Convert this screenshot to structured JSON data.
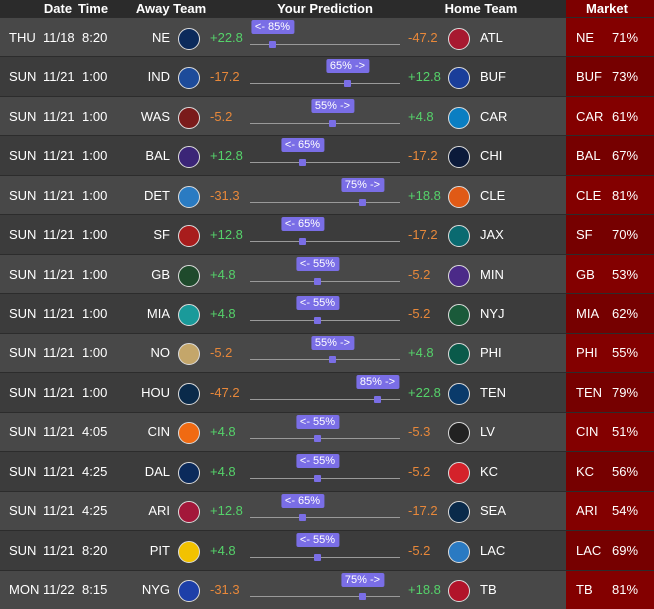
{
  "header": {
    "date": "Date",
    "time": "Time",
    "away": "Away Team",
    "prediction": "Your Prediction",
    "home": "Home Team",
    "market": "Market"
  },
  "rows": [
    {
      "day": "THU",
      "date": "11/18",
      "time": "8:20",
      "away": "NE",
      "away_spread": "+22.8",
      "prediction": "<- 85%",
      "home_spread": "-47.2",
      "home": "ATL",
      "market_team": "NE",
      "market_pct": "71%"
    },
    {
      "day": "SUN",
      "date": "11/21",
      "time": "1:00",
      "away": "IND",
      "away_spread": "-17.2",
      "prediction": "65% ->",
      "home_spread": "+12.8",
      "home": "BUF",
      "market_team": "BUF",
      "market_pct": "73%"
    },
    {
      "day": "SUN",
      "date": "11/21",
      "time": "1:00",
      "away": "WAS",
      "away_spread": "-5.2",
      "prediction": "55% ->",
      "home_spread": "+4.8",
      "home": "CAR",
      "market_team": "CAR",
      "market_pct": "61%"
    },
    {
      "day": "SUN",
      "date": "11/21",
      "time": "1:00",
      "away": "BAL",
      "away_spread": "+12.8",
      "prediction": "<- 65%",
      "home_spread": "-17.2",
      "home": "CHI",
      "market_team": "BAL",
      "market_pct": "67%"
    },
    {
      "day": "SUN",
      "date": "11/21",
      "time": "1:00",
      "away": "DET",
      "away_spread": "-31.3",
      "prediction": "75% ->",
      "home_spread": "+18.8",
      "home": "CLE",
      "market_team": "CLE",
      "market_pct": "81%"
    },
    {
      "day": "SUN",
      "date": "11/21",
      "time": "1:00",
      "away": "SF",
      "away_spread": "+12.8",
      "prediction": "<- 65%",
      "home_spread": "-17.2",
      "home": "JAX",
      "market_team": "SF",
      "market_pct": "70%"
    },
    {
      "day": "SUN",
      "date": "11/21",
      "time": "1:00",
      "away": "GB",
      "away_spread": "+4.8",
      "prediction": "<- 55%",
      "home_spread": "-5.2",
      "home": "MIN",
      "market_team": "GB",
      "market_pct": "53%"
    },
    {
      "day": "SUN",
      "date": "11/21",
      "time": "1:00",
      "away": "MIA",
      "away_spread": "+4.8",
      "prediction": "<- 55%",
      "home_spread": "-5.2",
      "home": "NYJ",
      "market_team": "MIA",
      "market_pct": "62%"
    },
    {
      "day": "SUN",
      "date": "11/21",
      "time": "1:00",
      "away": "NO",
      "away_spread": "-5.2",
      "prediction": "55% ->",
      "home_spread": "+4.8",
      "home": "PHI",
      "market_team": "PHI",
      "market_pct": "55%"
    },
    {
      "day": "SUN",
      "date": "11/21",
      "time": "1:00",
      "away": "HOU",
      "away_spread": "-47.2",
      "prediction": "85% ->",
      "home_spread": "+22.8",
      "home": "TEN",
      "market_team": "TEN",
      "market_pct": "79%"
    },
    {
      "day": "SUN",
      "date": "11/21",
      "time": "4:05",
      "away": "CIN",
      "away_spread": "+4.8",
      "prediction": "<- 55%",
      "home_spread": "-5.3",
      "home": "LV",
      "market_team": "CIN",
      "market_pct": "51%"
    },
    {
      "day": "SUN",
      "date": "11/21",
      "time": "4:25",
      "away": "DAL",
      "away_spread": "+4.8",
      "prediction": "<- 55%",
      "home_spread": "-5.2",
      "home": "KC",
      "market_team": "KC",
      "market_pct": "56%"
    },
    {
      "day": "SUN",
      "date": "11/21",
      "time": "4:25",
      "away": "ARI",
      "away_spread": "+12.8",
      "prediction": "<- 65%",
      "home_spread": "-17.2",
      "home": "SEA",
      "market_team": "ARI",
      "market_pct": "54%"
    },
    {
      "day": "SUN",
      "date": "11/21",
      "time": "8:20",
      "away": "PIT",
      "away_spread": "+4.8",
      "prediction": "<- 55%",
      "home_spread": "-5.2",
      "home": "LAC",
      "market_team": "LAC",
      "market_pct": "69%"
    },
    {
      "day": "MON",
      "date": "11/22",
      "time": "8:15",
      "away": "NYG",
      "away_spread": "-31.3",
      "prediction": "75% ->",
      "home_spread": "+18.8",
      "home": "TB",
      "market_team": "TB",
      "market_pct": "81%"
    }
  ]
}
